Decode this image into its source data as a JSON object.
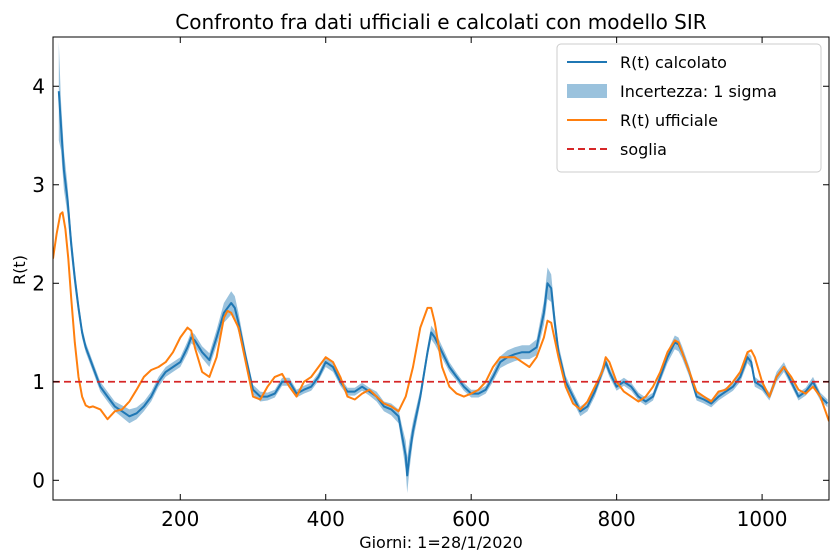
{
  "chart_data": {
    "type": "line",
    "title": "Confronto fra dati ufficiali e calcolati con modello SIR",
    "xlabel": "Giorni: 1=28/1/2020",
    "ylabel": "R(t)",
    "xlim": [
      25,
      1092
    ],
    "ylim": [
      -0.2,
      4.5
    ],
    "xticks": [
      200,
      400,
      600,
      800,
      1000
    ],
    "yticks": [
      0,
      1,
      2,
      3,
      4
    ],
    "grid": false,
    "legend_position": "top-right",
    "colors": {
      "calcolato": "#1f77b4",
      "band": "#1f77b4",
      "ufficiale": "#ff7f0e",
      "soglia": "#d62728"
    },
    "legend": [
      {
        "label": "R(t) calcolato",
        "style": "line",
        "color": "#1f77b4"
      },
      {
        "label": "Incertezza: 1 sigma",
        "style": "patch",
        "color": "#1f77b4"
      },
      {
        "label": "R(t) ufficiale",
        "style": "line",
        "color": "#ff7f0e"
      },
      {
        "label": "soglia",
        "style": "dashed",
        "color": "#d62728"
      }
    ],
    "series": [
      {
        "name": "R(t) calcolato",
        "x": [
          33,
          36,
          40,
          45,
          50,
          55,
          60,
          65,
          70,
          75,
          80,
          90,
          100,
          110,
          120,
          130,
          140,
          150,
          160,
          170,
          180,
          190,
          200,
          210,
          215,
          220,
          230,
          240,
          250,
          260,
          270,
          275,
          280,
          290,
          300,
          310,
          320,
          330,
          340,
          350,
          360,
          370,
          380,
          390,
          400,
          410,
          420,
          430,
          440,
          450,
          460,
          470,
          480,
          490,
          500,
          505,
          510,
          512,
          515,
          520,
          530,
          540,
          545,
          550,
          560,
          570,
          580,
          590,
          600,
          610,
          620,
          630,
          640,
          650,
          660,
          670,
          680,
          690,
          700,
          705,
          710,
          715,
          720,
          730,
          740,
          750,
          760,
          770,
          780,
          785,
          790,
          800,
          810,
          820,
          830,
          840,
          850,
          860,
          870,
          880,
          885,
          890,
          900,
          910,
          920,
          930,
          940,
          950,
          960,
          970,
          980,
          985,
          990,
          1000,
          1010,
          1020,
          1030,
          1040,
          1050,
          1060,
          1070,
          1080,
          1090
        ],
        "y": [
          3.95,
          3.6,
          3.15,
          2.85,
          2.4,
          2.05,
          1.75,
          1.5,
          1.35,
          1.25,
          1.15,
          0.95,
          0.85,
          0.75,
          0.7,
          0.65,
          0.68,
          0.75,
          0.85,
          1.0,
          1.1,
          1.15,
          1.2,
          1.35,
          1.45,
          1.42,
          1.3,
          1.22,
          1.45,
          1.7,
          1.8,
          1.75,
          1.6,
          1.25,
          0.92,
          0.85,
          0.85,
          0.88,
          1.0,
          1.0,
          0.88,
          0.92,
          0.95,
          1.05,
          1.2,
          1.15,
          1.0,
          0.9,
          0.9,
          0.95,
          0.9,
          0.85,
          0.75,
          0.72,
          0.65,
          0.45,
          0.25,
          0.05,
          0.25,
          0.5,
          0.85,
          1.3,
          1.5,
          1.45,
          1.3,
          1.15,
          1.05,
          0.95,
          0.88,
          0.88,
          0.92,
          1.05,
          1.2,
          1.25,
          1.28,
          1.3,
          1.3,
          1.35,
          1.7,
          2.0,
          1.95,
          1.6,
          1.3,
          1.0,
          0.85,
          0.7,
          0.75,
          0.9,
          1.1,
          1.2,
          1.1,
          0.95,
          1.0,
          0.95,
          0.85,
          0.8,
          0.85,
          1.05,
          1.25,
          1.4,
          1.38,
          1.3,
          1.1,
          0.85,
          0.82,
          0.78,
          0.85,
          0.9,
          0.95,
          1.05,
          1.25,
          1.2,
          1.0,
          0.95,
          0.85,
          1.05,
          1.15,
          1.0,
          0.85,
          0.9,
          1.0,
          0.85,
          0.78
        ],
        "sigma": [
          0.5,
          0.25,
          0.2,
          0.15,
          0.12,
          0.1,
          0.08,
          0.06,
          0.05,
          0.05,
          0.05,
          0.05,
          0.05,
          0.05,
          0.06,
          0.07,
          0.06,
          0.05,
          0.05,
          0.05,
          0.05,
          0.05,
          0.05,
          0.06,
          0.06,
          0.06,
          0.06,
          0.07,
          0.08,
          0.1,
          0.12,
          0.12,
          0.1,
          0.06,
          0.05,
          0.05,
          0.04,
          0.04,
          0.04,
          0.04,
          0.04,
          0.04,
          0.04,
          0.04,
          0.05,
          0.05,
          0.04,
          0.04,
          0.04,
          0.04,
          0.04,
          0.05,
          0.05,
          0.06,
          0.07,
          0.1,
          0.15,
          0.18,
          0.15,
          0.1,
          0.07,
          0.06,
          0.07,
          0.07,
          0.06,
          0.05,
          0.04,
          0.04,
          0.04,
          0.04,
          0.04,
          0.05,
          0.06,
          0.07,
          0.07,
          0.07,
          0.07,
          0.08,
          0.12,
          0.16,
          0.14,
          0.1,
          0.08,
          0.06,
          0.05,
          0.05,
          0.05,
          0.05,
          0.05,
          0.05,
          0.05,
          0.04,
          0.04,
          0.04,
          0.04,
          0.04,
          0.04,
          0.05,
          0.06,
          0.07,
          0.07,
          0.06,
          0.05,
          0.04,
          0.04,
          0.04,
          0.04,
          0.04,
          0.04,
          0.05,
          0.06,
          0.06,
          0.05,
          0.04,
          0.04,
          0.05,
          0.05,
          0.04,
          0.04,
          0.04,
          0.05,
          0.04,
          0.04
        ]
      },
      {
        "name": "R(t) ufficiale",
        "x": [
          25,
          30,
          35,
          38,
          42,
          46,
          50,
          55,
          60,
          65,
          70,
          75,
          80,
          90,
          100,
          110,
          120,
          130,
          140,
          150,
          160,
          170,
          180,
          190,
          200,
          210,
          215,
          220,
          230,
          240,
          250,
          260,
          265,
          270,
          280,
          290,
          300,
          310,
          320,
          330,
          340,
          350,
          360,
          370,
          380,
          390,
          400,
          410,
          420,
          430,
          440,
          450,
          460,
          470,
          480,
          490,
          500,
          510,
          520,
          530,
          540,
          545,
          550,
          560,
          570,
          580,
          590,
          600,
          610,
          620,
          630,
          640,
          650,
          660,
          670,
          680,
          690,
          700,
          705,
          710,
          720,
          730,
          740,
          750,
          760,
          770,
          780,
          785,
          790,
          800,
          810,
          820,
          830,
          840,
          850,
          860,
          870,
          880,
          885,
          890,
          900,
          910,
          920,
          930,
          940,
          950,
          960,
          970,
          980,
          985,
          990,
          1000,
          1010,
          1020,
          1030,
          1040,
          1050,
          1060,
          1070,
          1080,
          1092
        ],
        "y": [
          2.25,
          2.5,
          2.7,
          2.72,
          2.55,
          2.25,
          1.85,
          1.4,
          1.05,
          0.85,
          0.76,
          0.74,
          0.75,
          0.72,
          0.62,
          0.7,
          0.72,
          0.8,
          0.92,
          1.05,
          1.12,
          1.15,
          1.2,
          1.3,
          1.45,
          1.55,
          1.52,
          1.35,
          1.1,
          1.05,
          1.25,
          1.65,
          1.72,
          1.7,
          1.55,
          1.2,
          0.85,
          0.82,
          0.95,
          1.05,
          1.08,
          0.95,
          0.85,
          1.0,
          1.05,
          1.15,
          1.25,
          1.2,
          1.05,
          0.85,
          0.82,
          0.88,
          0.92,
          0.85,
          0.78,
          0.75,
          0.7,
          0.85,
          1.15,
          1.55,
          1.75,
          1.75,
          1.6,
          1.15,
          0.95,
          0.88,
          0.85,
          0.88,
          0.92,
          1.0,
          1.15,
          1.25,
          1.25,
          1.25,
          1.2,
          1.15,
          1.25,
          1.45,
          1.62,
          1.6,
          1.25,
          0.95,
          0.78,
          0.72,
          0.8,
          0.95,
          1.1,
          1.25,
          1.2,
          1.0,
          0.9,
          0.85,
          0.8,
          0.85,
          0.95,
          1.1,
          1.3,
          1.42,
          1.4,
          1.3,
          1.1,
          0.9,
          0.85,
          0.8,
          0.9,
          0.92,
          1.0,
          1.1,
          1.3,
          1.32,
          1.25,
          1.0,
          0.85,
          1.05,
          1.15,
          1.05,
          0.92,
          0.88,
          0.95,
          0.85,
          0.6
        ]
      }
    ],
    "threshold": {
      "name": "soglia",
      "y": 1.0
    }
  }
}
